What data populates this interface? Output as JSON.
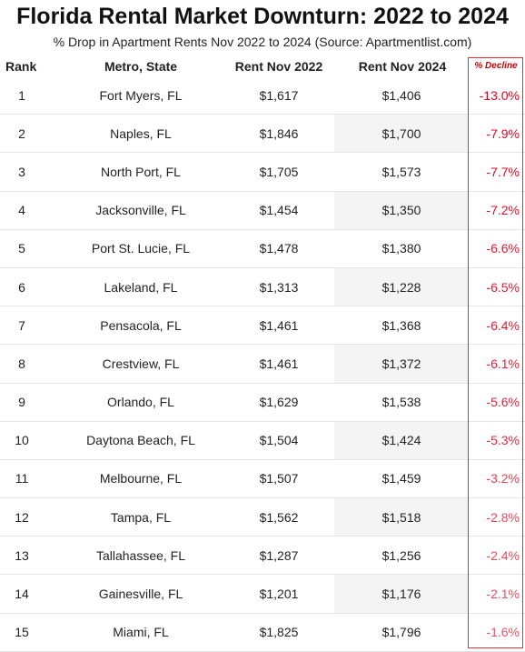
{
  "title": "Florida Rental Market Downturn: 2022 to 2024",
  "subtitle": "% Drop in Apartment Rents Nov 2022 to 2024 (Source: Apartmentlist.com)",
  "columns": [
    "Rank",
    "Metro, State",
    "Rent Nov 2022",
    "Rent Nov 2024",
    "% Decline"
  ],
  "colors": {
    "decline_strong": "#e8001a",
    "decline_weak": "#f4a0a8",
    "box": "#e03030"
  },
  "chart_data": {
    "type": "table",
    "title": "Florida Rental Market Downturn: 2022 to 2024",
    "subtitle": "% Drop in Apartment Rents Nov 2022 to 2024 (Source: Apartmentlist.com)",
    "columns": [
      "Rank",
      "Metro, State",
      "Rent Nov 2022",
      "Rent Nov 2024",
      "% Decline"
    ],
    "rows": [
      {
        "rank": "1",
        "metro": "Fort Myers, FL",
        "rent_2022": "$1,617",
        "rent_2024": "$1,406",
        "decline": "-13.0%",
        "decline_value": -13.0
      },
      {
        "rank": "2",
        "metro": "Naples, FL",
        "rent_2022": "$1,846",
        "rent_2024": "$1,700",
        "decline": "-7.9%",
        "decline_value": -7.9
      },
      {
        "rank": "3",
        "metro": "North Port, FL",
        "rent_2022": "$1,705",
        "rent_2024": "$1,573",
        "decline": "-7.7%",
        "decline_value": -7.7
      },
      {
        "rank": "4",
        "metro": "Jacksonville, FL",
        "rent_2022": "$1,454",
        "rent_2024": "$1,350",
        "decline": "-7.2%",
        "decline_value": -7.2
      },
      {
        "rank": "5",
        "metro": "Port St. Lucie, FL",
        "rent_2022": "$1,478",
        "rent_2024": "$1,380",
        "decline": "-6.6%",
        "decline_value": -6.6
      },
      {
        "rank": "6",
        "metro": "Lakeland, FL",
        "rent_2022": "$1,313",
        "rent_2024": "$1,228",
        "decline": "-6.5%",
        "decline_value": -6.5
      },
      {
        "rank": "7",
        "metro": "Pensacola, FL",
        "rent_2022": "$1,461",
        "rent_2024": "$1,368",
        "decline": "-6.4%",
        "decline_value": -6.4
      },
      {
        "rank": "8",
        "metro": "Crestview, FL",
        "rent_2022": "$1,461",
        "rent_2024": "$1,372",
        "decline": "-6.1%",
        "decline_value": -6.1
      },
      {
        "rank": "9",
        "metro": "Orlando, FL",
        "rent_2022": "$1,629",
        "rent_2024": "$1,538",
        "decline": "-5.6%",
        "decline_value": -5.6
      },
      {
        "rank": "10",
        "metro": "Daytona Beach, FL",
        "rent_2022": "$1,504",
        "rent_2024": "$1,424",
        "decline": "-5.3%",
        "decline_value": -5.3
      },
      {
        "rank": "11",
        "metro": "Melbourne, FL",
        "rent_2022": "$1,507",
        "rent_2024": "$1,459",
        "decline": "-3.2%",
        "decline_value": -3.2
      },
      {
        "rank": "12",
        "metro": "Tampa, FL",
        "rent_2022": "$1,562",
        "rent_2024": "$1,518",
        "decline": "-2.8%",
        "decline_value": -2.8
      },
      {
        "rank": "13",
        "metro": "Tallahassee, FL",
        "rent_2022": "$1,287",
        "rent_2024": "$1,256",
        "decline": "-2.4%",
        "decline_value": -2.4
      },
      {
        "rank": "14",
        "metro": "Gainesville, FL",
        "rent_2022": "$1,201",
        "rent_2024": "$1,176",
        "decline": "-2.1%",
        "decline_value": -2.1
      },
      {
        "rank": "15",
        "metro": "Miami, FL",
        "rent_2022": "$1,825",
        "rent_2024": "$1,796",
        "decline": "-1.6%",
        "decline_value": -1.6
      }
    ]
  }
}
